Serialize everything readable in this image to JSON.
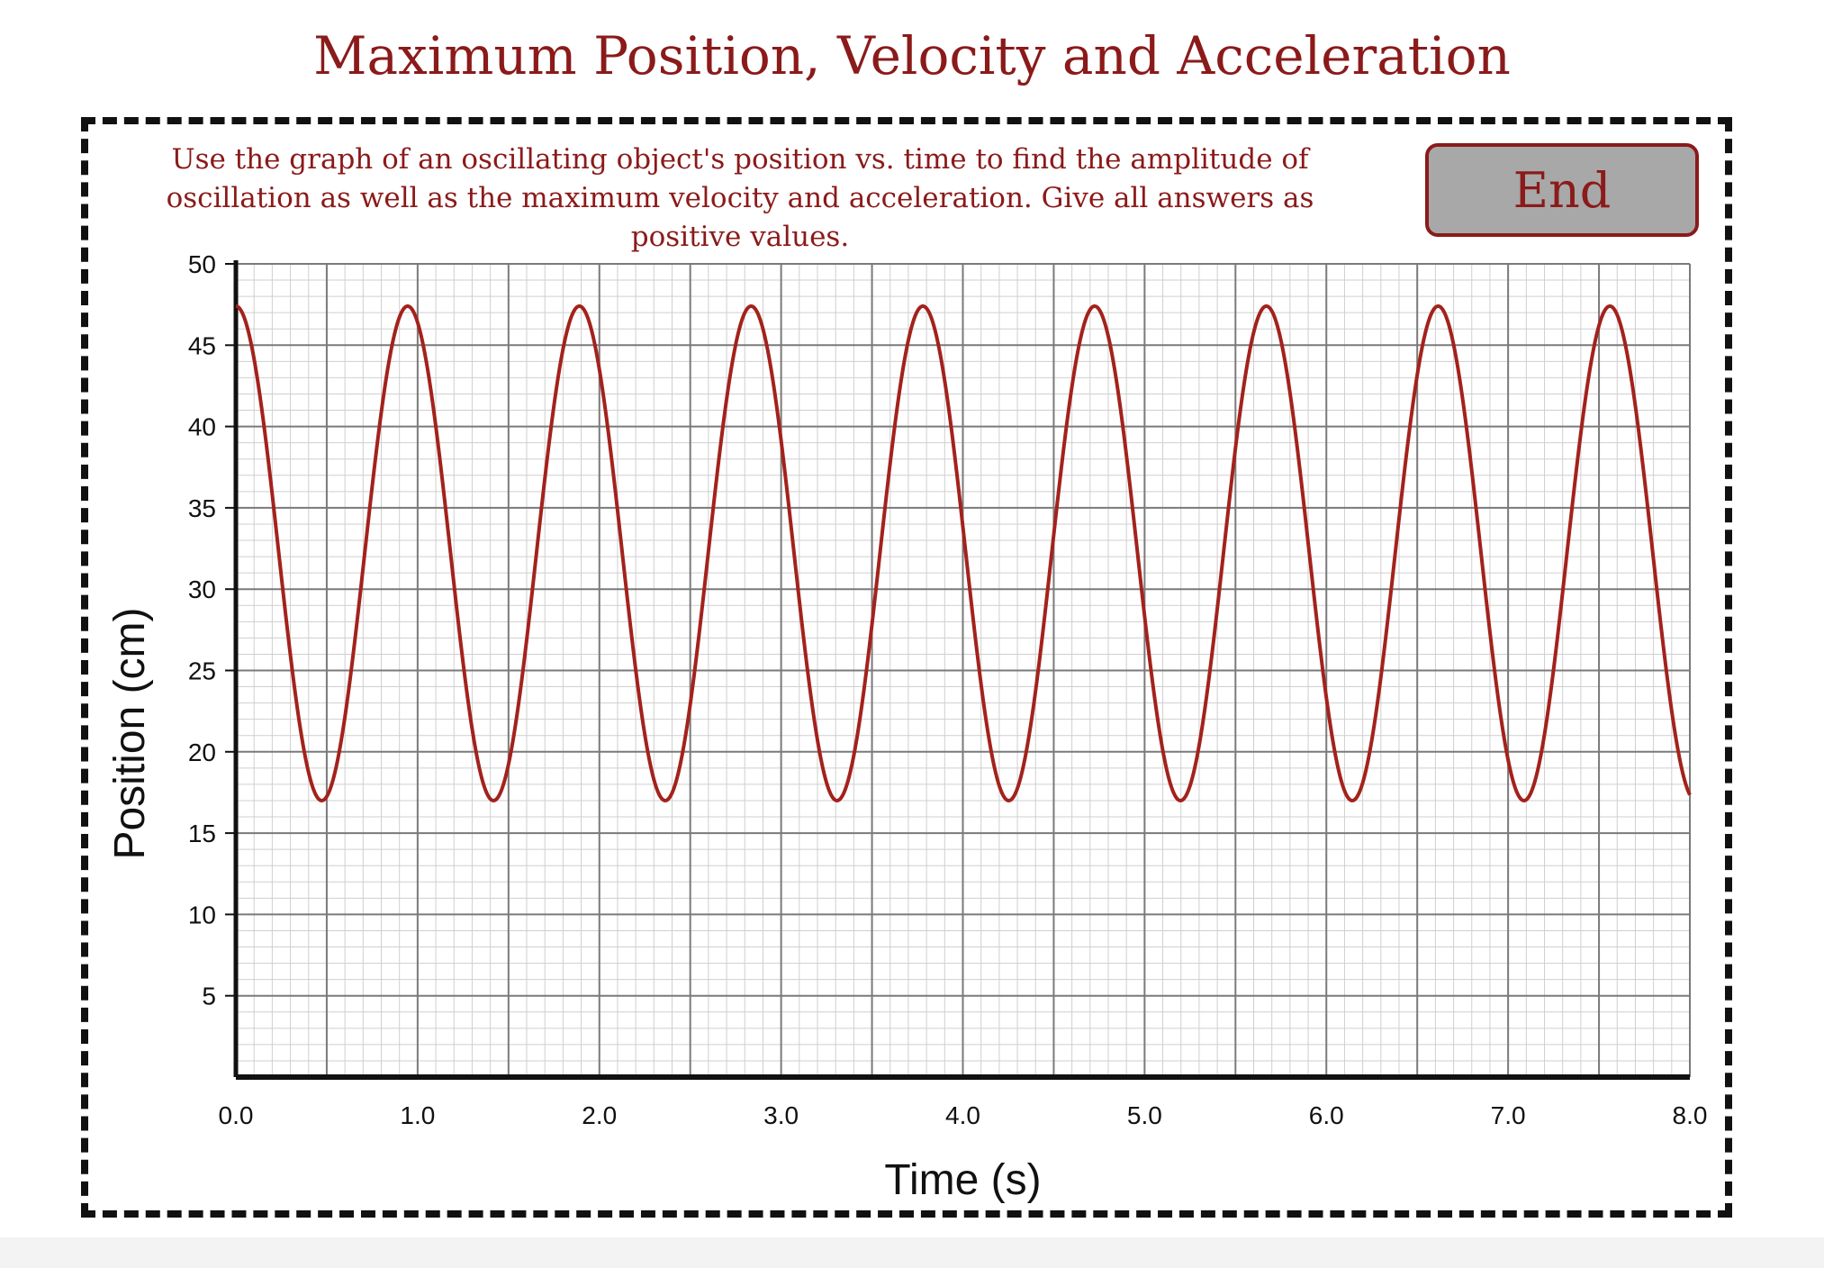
{
  "page": {
    "title": "Maximum Position, Velocity and Acceleration",
    "instructions": "Use the graph of an oscillating object's position vs. time to find the amplitude of oscillation as well as the maximum velocity and acceleration. Give all answers as positive values.",
    "end_label": "End"
  },
  "colors": {
    "accent": "#8b1a1a",
    "curve": "#a3221c",
    "button_bg": "#a8a8a8",
    "grid_major": "#7a7a7a",
    "grid_minor": "#cfcfcf"
  },
  "chart_data": {
    "type": "line",
    "xlabel": "Time (s)",
    "ylabel": "Position (cm)",
    "xlim": [
      0,
      8
    ],
    "ylim": [
      0,
      50
    ],
    "x_ticks": [
      "0.0",
      "1.0",
      "2.0",
      "3.0",
      "4.0",
      "5.0",
      "6.0",
      "7.0",
      "8.0"
    ],
    "y_ticks": [
      "5",
      "10",
      "15",
      "20",
      "25",
      "30",
      "35",
      "40",
      "45",
      "50"
    ],
    "grid": true,
    "series": [
      {
        "equilibrium_cm": 32.2,
        "amplitude_cm": 15.2,
        "period_s": 0.945,
        "max_cm": 47.4,
        "min_cm": 17.0,
        "starts_at": "maximum",
        "maxima_s": [
          0.0,
          0.945,
          1.89,
          2.835,
          3.78,
          4.725,
          5.67,
          6.615,
          7.56
        ],
        "minima_s": [
          0.4725,
          1.4175,
          2.3625,
          3.3075,
          4.2525,
          5.1975,
          6.1425,
          7.0875
        ]
      }
    ]
  }
}
